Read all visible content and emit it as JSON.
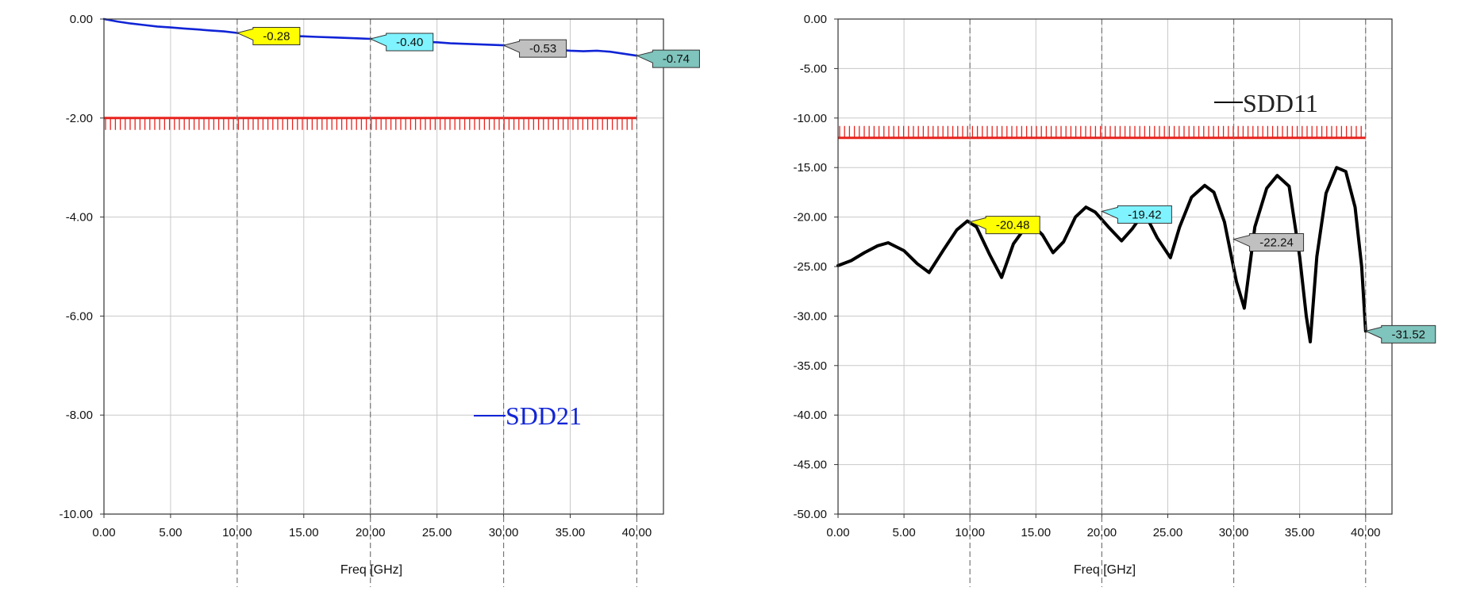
{
  "colors": {
    "grid": "#c8c8c8",
    "marker_dash": "#777777",
    "frame": "#333333",
    "limit": "#e8231e",
    "sdd21": "#1024d6",
    "sdd11": "#000000",
    "marker_yellow": "#ffff00",
    "marker_cyan": "#7ff3ff",
    "marker_gray": "#c0c0c0",
    "marker_teal": "#7fc4bd"
  },
  "chart_data": [
    {
      "type": "line",
      "title": "",
      "xlabel": "Freq [GHz]",
      "ylabel": "",
      "xlim": [
        0,
        42
      ],
      "ylim": [
        -10,
        0
      ],
      "x_ticks": [
        "0.00",
        "5.00",
        "10.00",
        "15.00",
        "20.00",
        "25.00",
        "30.00",
        "35.00",
        "40.00"
      ],
      "y_ticks": [
        "0.00",
        "-2.00",
        "-4.00",
        "-6.00",
        "-8.00",
        "-10.00"
      ],
      "grid": true,
      "legend": {
        "position": "bottom-right",
        "label": "SDD21"
      },
      "limit_line": {
        "value": -2.0,
        "x_range": [
          0,
          40
        ],
        "hatch_side": "below"
      },
      "series": [
        {
          "name": "SDD21",
          "color": "#1024d6",
          "x": [
            0,
            1,
            2,
            3,
            4,
            5,
            6,
            7,
            8,
            9,
            10,
            11,
            12,
            13,
            14,
            15,
            16,
            17,
            18,
            19,
            20,
            21,
            22,
            23,
            24,
            25,
            26,
            27,
            28,
            29,
            30,
            31,
            32,
            33,
            34,
            35,
            36,
            37,
            38,
            39,
            40
          ],
          "y": [
            0.0,
            -0.05,
            -0.09,
            -0.12,
            -0.15,
            -0.17,
            -0.19,
            -0.21,
            -0.23,
            -0.25,
            -0.28,
            -0.3,
            -0.32,
            -0.33,
            -0.34,
            -0.35,
            -0.36,
            -0.37,
            -0.38,
            -0.39,
            -0.4,
            -0.41,
            -0.42,
            -0.44,
            -0.46,
            -0.47,
            -0.49,
            -0.5,
            -0.51,
            -0.52,
            -0.53,
            -0.55,
            -0.58,
            -0.6,
            -0.62,
            -0.64,
            -0.65,
            -0.64,
            -0.66,
            -0.7,
            -0.74
          ]
        }
      ],
      "markers": [
        {
          "x": 10,
          "y": -0.28,
          "label": "-0.28",
          "style": "yellow"
        },
        {
          "x": 20,
          "y": -0.4,
          "label": "-0.40",
          "style": "cyan"
        },
        {
          "x": 30,
          "y": -0.53,
          "label": "-0.53",
          "style": "gray"
        },
        {
          "x": 40,
          "y": -0.74,
          "label": "-0.74",
          "style": "teal"
        }
      ]
    },
    {
      "type": "line",
      "title": "",
      "xlabel": "Freq [GHz]",
      "ylabel": "",
      "xlim": [
        0,
        42
      ],
      "ylim": [
        -50,
        0
      ],
      "x_ticks": [
        "0.00",
        "5.00",
        "10.00",
        "15.00",
        "20.00",
        "25.00",
        "30.00",
        "35.00",
        "40.00"
      ],
      "y_ticks": [
        "0.00",
        "-5.00",
        "-10.00",
        "-15.00",
        "-20.00",
        "-25.00",
        "-30.00",
        "-35.00",
        "-40.00",
        "-45.00",
        "-50.00"
      ],
      "grid": true,
      "legend": {
        "position": "top-right",
        "label": "SDD11"
      },
      "limit_line": {
        "value": -12.0,
        "x_range": [
          0,
          40
        ],
        "hatch_side": "above"
      },
      "series": [
        {
          "name": "SDD11",
          "color": "#000000",
          "x": [
            0,
            1,
            2,
            3,
            3.8,
            5,
            6,
            6.9,
            8,
            9,
            9.8,
            10.5,
            11.5,
            12.4,
            13.3,
            14.5,
            15.5,
            16.3,
            17.1,
            18,
            18.8,
            19.5,
            20.5,
            21.5,
            22.3,
            23.2,
            24.2,
            25.2,
            25.9,
            26.8,
            27.8,
            28.5,
            29.3,
            30.2,
            30.8,
            31.6,
            32.5,
            33.3,
            34.2,
            35,
            35.5,
            35.8,
            36.3,
            37,
            37.8,
            38.5,
            39.2,
            39.7,
            40
          ],
          "y": [
            -24.9,
            -24.4,
            -23.6,
            -22.9,
            -22.6,
            -23.4,
            -24.7,
            -25.6,
            -23.3,
            -21.3,
            -20.4,
            -21.0,
            -23.8,
            -26.1,
            -22.7,
            -20.5,
            -21.8,
            -23.6,
            -22.5,
            -20.0,
            -19.0,
            -19.5,
            -21.0,
            -22.4,
            -21.2,
            -19.5,
            -22.1,
            -24.1,
            -21.0,
            -18.0,
            -16.8,
            -17.5,
            -20.5,
            -26.5,
            -29.2,
            -21.0,
            -17.1,
            -15.8,
            -16.9,
            -24.0,
            -30.0,
            -32.6,
            -24.0,
            -17.6,
            -15.0,
            -15.4,
            -19.0,
            -25.0,
            -31.52
          ]
        }
      ],
      "markers": [
        {
          "x": 10,
          "y": -20.48,
          "label": "-20.48",
          "style": "yellow"
        },
        {
          "x": 20,
          "y": -19.42,
          "label": "-19.42",
          "style": "cyan"
        },
        {
          "x": 30,
          "y": -22.24,
          "label": "-22.24",
          "style": "gray"
        },
        {
          "x": 40,
          "y": -31.52,
          "label": "-31.52",
          "style": "teal"
        }
      ]
    }
  ]
}
